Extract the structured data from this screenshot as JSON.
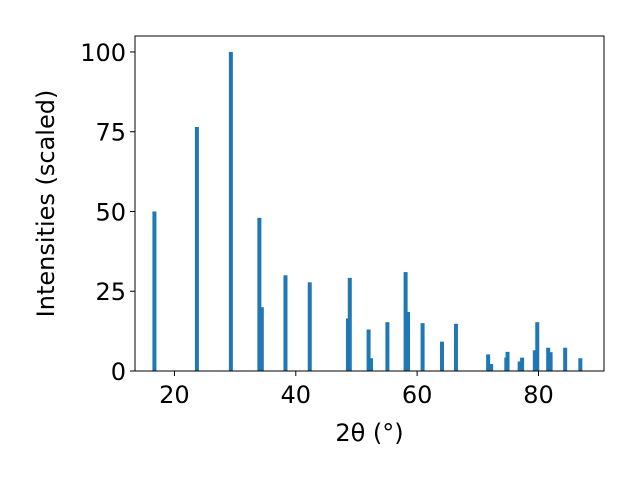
{
  "chart_data": {
    "type": "bar",
    "title": "",
    "xlabel": "2θ (°)",
    "ylabel": "Intensities (scaled)",
    "xlim": [
      13.5,
      90.8
    ],
    "ylim": [
      0,
      105
    ],
    "xticks": [
      20,
      40,
      60,
      80
    ],
    "yticks": [
      0,
      25,
      50,
      75,
      100
    ],
    "grid": false,
    "bar_color": "#1f77b4",
    "x": [
      16.7,
      23.7,
      29.3,
      34.0,
      34.4,
      38.3,
      42.3,
      48.6,
      48.9,
      52.0,
      52.4,
      55.1,
      58.1,
      58.5,
      60.9,
      64.1,
      66.4,
      71.7,
      72.2,
      74.7,
      74.9,
      76.9,
      77.3,
      79.4,
      79.8,
      81.6,
      82.0,
      84.4,
      86.9
    ],
    "values": [
      50,
      76.5,
      100,
      48,
      20,
      30,
      27.8,
      16.5,
      29.2,
      13,
      4,
      15.3,
      31,
      18.5,
      15,
      9.2,
      14.8,
      5.2,
      2.2,
      4.2,
      6,
      3,
      4.2,
      6.5,
      15.3,
      7.3,
      5.9,
      7.3,
      4
    ]
  }
}
